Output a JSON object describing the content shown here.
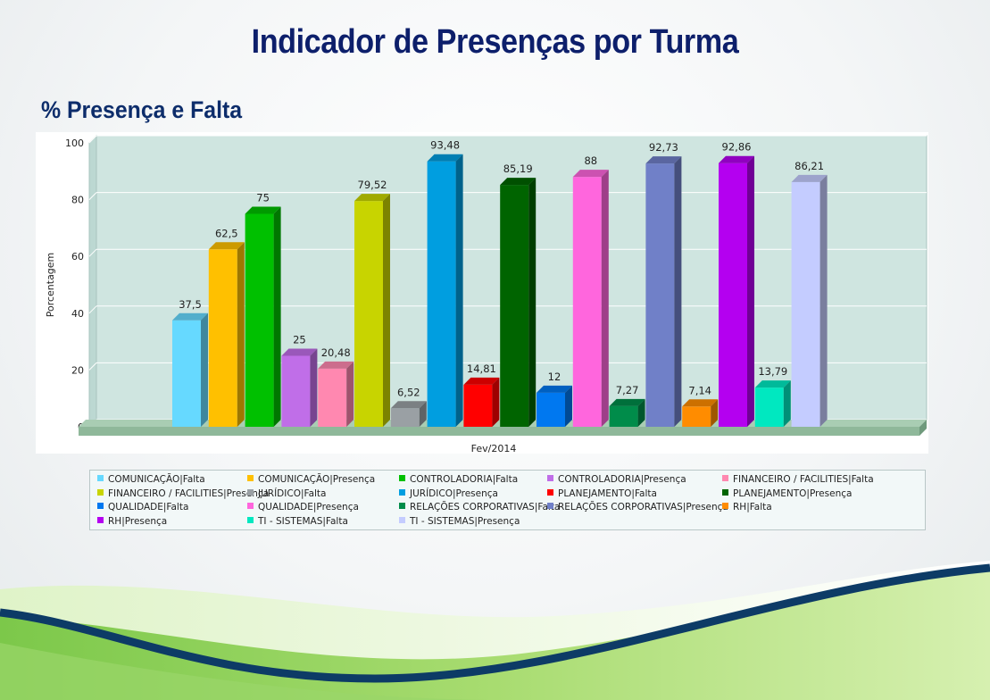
{
  "page": {
    "title": "Indicador de Presenças por Turma",
    "subtitle": "% Presença e Falta"
  },
  "chart_data": {
    "type": "bar",
    "title": "",
    "xlabel": "Fev/2014",
    "ylabel": "Porcentagem",
    "ylim": [
      0,
      100
    ],
    "yticks": [
      0,
      20,
      40,
      60,
      80,
      100
    ],
    "grid": true,
    "legend_position": "bottom",
    "three_d": true,
    "categories": [
      "Fev/2014"
    ],
    "series": [
      {
        "name": "COMUNICAÇÃO|Falta",
        "value": 37.5,
        "label": "37,5",
        "color": "#66d9ff"
      },
      {
        "name": "COMUNICAÇÃO|Presença",
        "value": 62.5,
        "label": "62,5",
        "color": "#ffc000"
      },
      {
        "name": "CONTROLADORIA|Falta",
        "value": 75,
        "label": "75",
        "color": "#00c000"
      },
      {
        "name": "CONTROLADORIA|Presença",
        "value": 25,
        "label": "25",
        "color": "#c06ee8"
      },
      {
        "name": "FINANCEIRO / FACILITIES|Falta",
        "value": 20.48,
        "label": "20,48",
        "color": "#ff88b0"
      },
      {
        "name": "FINANCEIRO / FACILITIES|Presença",
        "value": 79.52,
        "label": "79,52",
        "color": "#c8d400"
      },
      {
        "name": "JURÍDICO|Falta",
        "value": 6.52,
        "label": "6,52",
        "color": "#9aa0a4"
      },
      {
        "name": "JURÍDICO|Presença",
        "value": 93.48,
        "label": "93,48",
        "color": "#009ee0"
      },
      {
        "name": "PLANEJAMENTO|Falta",
        "value": 14.81,
        "label": "14,81",
        "color": "#ff0000"
      },
      {
        "name": "PLANEJAMENTO|Presença",
        "value": 85.19,
        "label": "85,19",
        "color": "#006400"
      },
      {
        "name": "QUALIDADE|Falta",
        "value": 12,
        "label": "12",
        "color": "#0078f0"
      },
      {
        "name": "QUALIDADE|Presença",
        "value": 88,
        "label": "88",
        "color": "#ff66dd"
      },
      {
        "name": "RELAÇÕES CORPORATIVAS|Falta",
        "value": 7.27,
        "label": "7,27",
        "color": "#008c4a"
      },
      {
        "name": "RELAÇÕES CORPORATIVAS|Presença",
        "value": 92.73,
        "label": "92,73",
        "color": "#7080c8"
      },
      {
        "name": "RH|Falta",
        "value": 7.14,
        "label": "7,14",
        "color": "#ff8c00"
      },
      {
        "name": "RH|Presença",
        "value": 92.86,
        "label": "92,86",
        "color": "#b400f0"
      },
      {
        "name": "TI - SISTEMAS|Falta",
        "value": 13.79,
        "label": "13,79",
        "color": "#00e8c0"
      },
      {
        "name": "TI - SISTEMAS|Presença",
        "value": 86.21,
        "label": "86,21",
        "color": "#c4ccff"
      }
    ],
    "colors": {
      "plot_background": "#cfe5e0",
      "floor": "#8fb89a",
      "gridline": "#ffffff"
    }
  }
}
